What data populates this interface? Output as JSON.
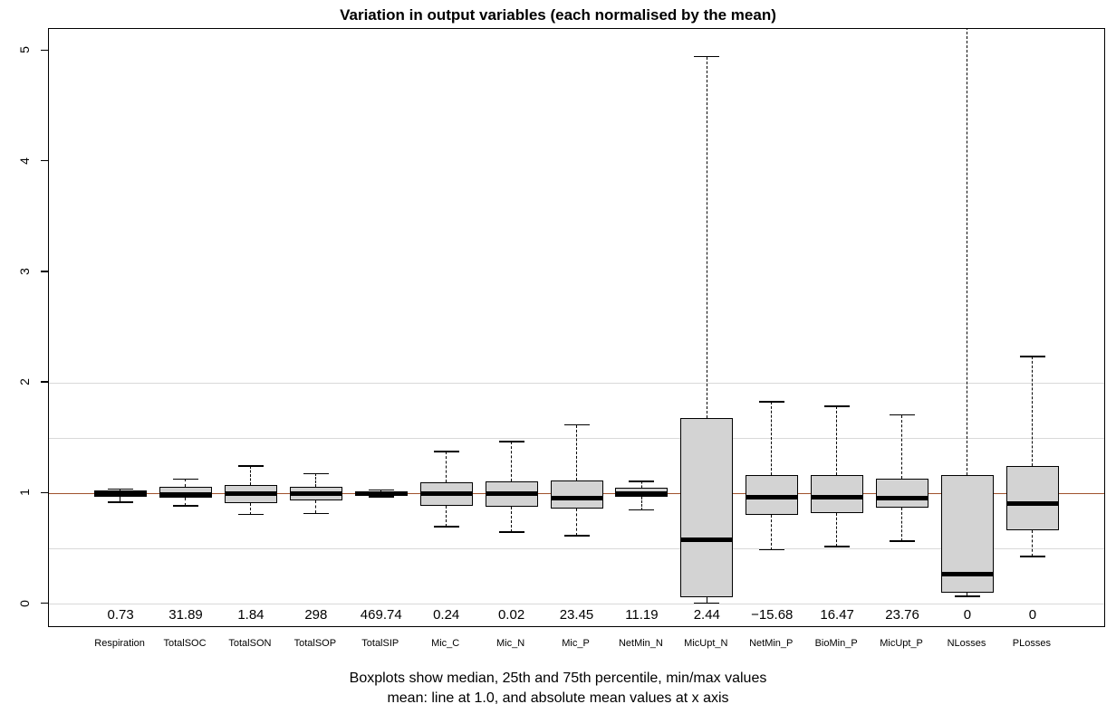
{
  "chart_data": {
    "type": "boxplot",
    "title": "Variation in output variables (each normalised by the mean)",
    "subtitle_line1": "Boxplots show median, 25th and 75th percentile, min/max values",
    "subtitle_line2": "mean: line at 1.0, and absolute mean values at x axis",
    "ylim": [
      -0.2,
      5.2
    ],
    "yticks": [
      0,
      1,
      2,
      3,
      4,
      5
    ],
    "gridline_values": [
      0,
      0.5,
      1.5,
      2.0
    ],
    "gridline_color": "#d9d9d9",
    "mean_line_value": 1.0,
    "mean_line_color": "#A0522D",
    "box_fill_color": "#d3d3d3",
    "box_border_color": "#000000",
    "legend_position": "none",
    "grid": "partial-horizontal",
    "categories": [
      "Respiration",
      "TotalSOC",
      "TotalSON",
      "TotalSOP",
      "TotalSIP",
      "Mic_C",
      "Mic_N",
      "Mic_P",
      "NetMin_N",
      "MicUpt_N",
      "NetMin_P",
      "BioMin_P",
      "MicUpt_P",
      "NLosses",
      "PLosses"
    ],
    "mean_values": [
      "0.73",
      "31.89",
      "1.84",
      "298",
      "469.74",
      "0.24",
      "0.02",
      "23.45",
      "11.19",
      "2.44",
      "−15.68",
      "16.47",
      "23.76",
      "0",
      "0"
    ],
    "boxes": [
      {
        "name": "Respiration",
        "whisker_low": 0.92,
        "q1": 0.97,
        "median": 1.0,
        "q3": 1.03,
        "whisker_high": 1.04
      },
      {
        "name": "TotalSOC",
        "whisker_low": 0.89,
        "q1": 0.96,
        "median": 0.99,
        "q3": 1.06,
        "whisker_high": 1.13
      },
      {
        "name": "TotalSON",
        "whisker_low": 0.81,
        "q1": 0.91,
        "median": 1.0,
        "q3": 1.08,
        "whisker_high": 1.25
      },
      {
        "name": "TotalSOP",
        "whisker_low": 0.82,
        "q1": 0.94,
        "median": 1.0,
        "q3": 1.06,
        "whisker_high": 1.18
      },
      {
        "name": "TotalSIP",
        "whisker_low": 0.97,
        "q1": 0.985,
        "median": 1.0,
        "q3": 1.02,
        "whisker_high": 1.03
      },
      {
        "name": "Mic_C",
        "whisker_low": 0.7,
        "q1": 0.89,
        "median": 1.0,
        "q3": 1.1,
        "whisker_high": 1.38
      },
      {
        "name": "Mic_N",
        "whisker_low": 0.65,
        "q1": 0.88,
        "median": 1.0,
        "q3": 1.11,
        "whisker_high": 1.47
      },
      {
        "name": "Mic_P",
        "whisker_low": 0.62,
        "q1": 0.86,
        "median": 0.96,
        "q3": 1.12,
        "whisker_high": 1.62
      },
      {
        "name": "NetMin_N",
        "whisker_low": 0.85,
        "q1": 0.97,
        "median": 1.0,
        "q3": 1.05,
        "whisker_high": 1.11
      },
      {
        "name": "MicUpt_N",
        "whisker_low": 0.01,
        "q1": 0.06,
        "median": 0.58,
        "q3": 1.68,
        "whisker_high": 4.95
      },
      {
        "name": "NetMin_P",
        "whisker_low": 0.49,
        "q1": 0.81,
        "median": 0.97,
        "q3": 1.17,
        "whisker_high": 1.83
      },
      {
        "name": "BioMin_P",
        "whisker_low": 0.52,
        "q1": 0.82,
        "median": 0.97,
        "q3": 1.17,
        "whisker_high": 1.79
      },
      {
        "name": "MicUpt_P",
        "whisker_low": 0.57,
        "q1": 0.87,
        "median": 0.96,
        "q3": 1.13,
        "whisker_high": 1.71
      },
      {
        "name": "NLosses",
        "whisker_low": 0.07,
        "q1": 0.1,
        "median": 0.27,
        "q3": 1.17,
        "whisker_high": 5.3,
        "whisker_high_offscale": true
      },
      {
        "name": "PLosses",
        "whisker_low": 0.43,
        "q1": 0.67,
        "median": 0.91,
        "q3": 1.25,
        "whisker_high": 2.24
      }
    ]
  }
}
